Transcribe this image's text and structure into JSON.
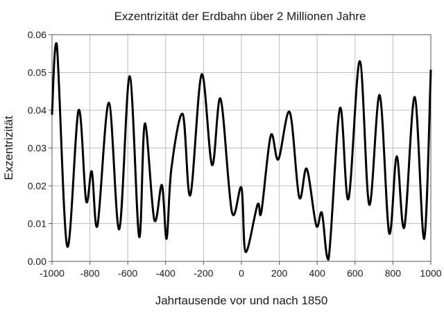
{
  "chart_data": {
    "type": "line",
    "title": "Exzentrizität der Erdbahn über 2 Millionen Jahre",
    "xlabel": "Jahrtausende vor und nach 1850",
    "ylabel": "Exzentrizität",
    "xlim": [
      -1000,
      1000
    ],
    "ylim": [
      0,
      0.06
    ],
    "xticks": [
      -1000,
      -800,
      -600,
      -400,
      -200,
      0,
      200,
      400,
      600,
      800,
      1000
    ],
    "xtick_labels": [
      "-1000",
      "-800",
      "-600",
      "-400",
      "-200",
      "0",
      "200",
      "400",
      "600",
      "800",
      "1000"
    ],
    "yticks": [
      0,
      0.01,
      0.02,
      0.03,
      0.04,
      0.05,
      0.06
    ],
    "ytick_labels": [
      "0.00",
      "0.01",
      "0.02",
      "0.03",
      "0.04",
      "0.05",
      "0.06"
    ],
    "grid": true,
    "line_color": "#000000",
    "series": [
      {
        "x": [
          -1000,
          -975,
          -920,
          -860,
          -820,
          -790,
          -760,
          -700,
          -645,
          -590,
          -540,
          -510,
          -460,
          -420,
          -395,
          -370,
          -310,
          -270,
          -210,
          -155,
          -110,
          -50,
          0,
          22,
          85,
          105,
          155,
          195,
          255,
          305,
          345,
          395,
          425,
          460,
          520,
          565,
          625,
          675,
          730,
          780,
          820,
          860,
          915,
          965,
          1000
        ],
        "y": [
          0.039,
          0.0575,
          0.004,
          0.04,
          0.016,
          0.0238,
          0.0095,
          0.042,
          0.0085,
          0.049,
          0.0065,
          0.0365,
          0.011,
          0.0202,
          0.006,
          0.0245,
          0.039,
          0.0175,
          0.0495,
          0.0255,
          0.043,
          0.013,
          0.0195,
          0.0025,
          0.015,
          0.013,
          0.0333,
          0.027,
          0.0395,
          0.017,
          0.0245,
          0.0095,
          0.0128,
          0.0005,
          0.0405,
          0.0165,
          0.053,
          0.015,
          0.044,
          0.0075,
          0.0278,
          0.009,
          0.0435,
          0.006,
          0.0505
        ]
      }
    ]
  }
}
